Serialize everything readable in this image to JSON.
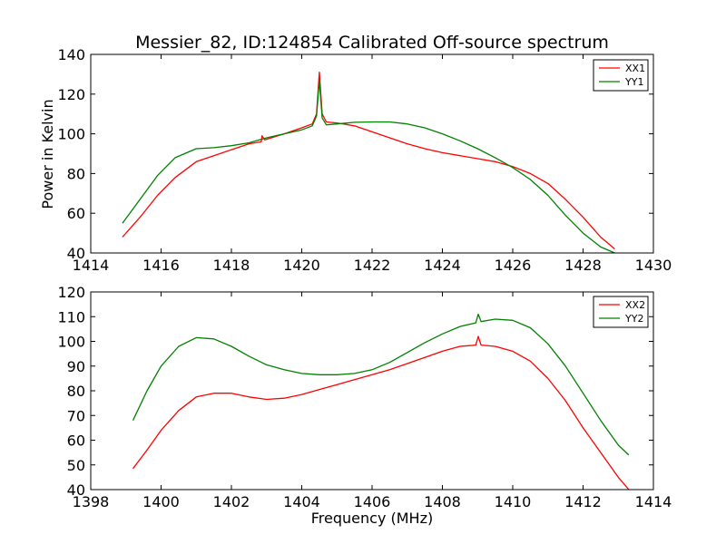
{
  "chart_data": [
    {
      "type": "line",
      "title": "Messier_82, ID:124854 Calibrated Off-source spectrum",
      "xlabel": "",
      "ylabel": "Power in Kelvin",
      "xlim": [
        1414,
        1430
      ],
      "ylim": [
        40,
        140
      ],
      "xticks": [
        "1414",
        "1416",
        "1418",
        "1420",
        "1422",
        "1424",
        "1426",
        "1428",
        "1430"
      ],
      "yticks": [
        "40",
        "60",
        "80",
        "100",
        "120",
        "140"
      ],
      "legend_position": "top-right",
      "grid": false,
      "series": [
        {
          "name": "XX1",
          "color": "#ff0000",
          "x": [
            1414.9,
            1415.4,
            1415.9,
            1416.4,
            1417.0,
            1417.5,
            1418.0,
            1418.5,
            1418.85,
            1418.87,
            1418.95,
            1419.5,
            1420.0,
            1420.3,
            1420.42,
            1420.5,
            1420.58,
            1420.7,
            1421.0,
            1421.5,
            1422.0,
            1422.5,
            1423.0,
            1423.5,
            1424.0,
            1424.5,
            1425.0,
            1425.5,
            1426.0,
            1426.5,
            1427.0,
            1427.5,
            1428.0,
            1428.5,
            1428.9
          ],
          "values": [
            48,
            58,
            69,
            78,
            86,
            89,
            92,
            95,
            96,
            99,
            97,
            100,
            103,
            105,
            110,
            131,
            110,
            106,
            105.5,
            104,
            101,
            98,
            95,
            92.5,
            90.5,
            89,
            87.5,
            86,
            83.5,
            80,
            75,
            67,
            58,
            48,
            42
          ]
        },
        {
          "name": "YY1",
          "color": "#008000",
          "x": [
            1414.9,
            1415.4,
            1415.9,
            1416.4,
            1417.0,
            1417.5,
            1418.0,
            1418.5,
            1419.0,
            1419.5,
            1420.0,
            1420.3,
            1420.42,
            1420.5,
            1420.58,
            1420.7,
            1421.0,
            1421.5,
            1422.0,
            1422.5,
            1423.0,
            1423.5,
            1424.0,
            1424.5,
            1425.0,
            1425.5,
            1426.0,
            1426.5,
            1427.0,
            1427.5,
            1428.0,
            1428.5,
            1428.9
          ],
          "values": [
            55,
            67,
            79,
            88,
            92.5,
            93,
            94,
            95.5,
            98,
            100,
            102,
            104,
            109,
            127,
            108,
            104.5,
            105,
            105.8,
            106,
            106,
            105,
            103,
            100,
            96.5,
            92.5,
            88,
            83,
            77,
            69,
            59,
            50,
            43,
            40
          ]
        }
      ]
    },
    {
      "type": "line",
      "title": "",
      "xlabel": "Frequency (MHz)",
      "ylabel": "",
      "xlim": [
        1398,
        1414
      ],
      "ylim": [
        40,
        120
      ],
      "xticks": [
        "1398",
        "1400",
        "1402",
        "1404",
        "1406",
        "1408",
        "1410",
        "1412",
        "1414"
      ],
      "yticks": [
        "40",
        "50",
        "60",
        "70",
        "80",
        "90",
        "100",
        "110",
        "120"
      ],
      "legend_position": "top-right",
      "grid": false,
      "series": [
        {
          "name": "XX2",
          "color": "#ff0000",
          "x": [
            1399.2,
            1399.6,
            1400.0,
            1400.5,
            1401.0,
            1401.5,
            1402.0,
            1402.5,
            1403.0,
            1403.5,
            1404.0,
            1404.5,
            1405.0,
            1405.5,
            1406.0,
            1406.5,
            1407.0,
            1407.5,
            1408.0,
            1408.5,
            1408.95,
            1409.02,
            1409.1,
            1409.5,
            1410.0,
            1410.5,
            1411.0,
            1411.5,
            1412.0,
            1412.5,
            1413.0,
            1413.3
          ],
          "values": [
            48.5,
            56,
            64,
            72,
            77.5,
            79,
            79,
            77.5,
            76.5,
            77,
            78.5,
            80.5,
            82.5,
            84.5,
            86.5,
            88.5,
            91,
            93.5,
            96,
            98,
            98.5,
            102,
            98.5,
            98,
            96,
            92,
            85,
            76,
            65,
            55,
            45,
            40
          ]
        },
        {
          "name": "YY2",
          "color": "#008000",
          "x": [
            1399.2,
            1399.6,
            1400.0,
            1400.5,
            1401.0,
            1401.5,
            1402.0,
            1402.5,
            1403.0,
            1403.5,
            1404.0,
            1404.5,
            1405.0,
            1405.5,
            1406.0,
            1406.5,
            1407.0,
            1407.5,
            1408.0,
            1408.5,
            1408.95,
            1409.02,
            1409.1,
            1409.5,
            1410.0,
            1410.5,
            1411.0,
            1411.5,
            1412.0,
            1412.5,
            1413.0,
            1413.3
          ],
          "values": [
            68,
            80,
            90,
            98,
            101.5,
            101,
            98,
            94,
            90.5,
            88.5,
            87,
            86.5,
            86.5,
            87,
            88.5,
            91.5,
            95.5,
            99.5,
            103,
            106,
            107.5,
            111,
            108,
            109,
            108.5,
            105.5,
            99,
            90,
            79,
            68,
            58,
            54
          ]
        }
      ]
    }
  ]
}
